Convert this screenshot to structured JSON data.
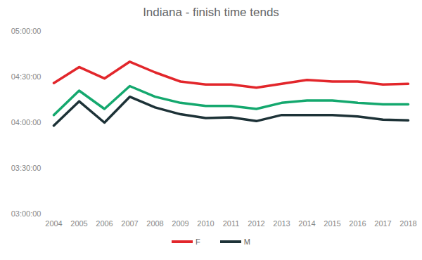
{
  "chart_data": {
    "type": "line",
    "title": "Indiana - finish time tends",
    "categories": [
      "2004",
      "2005",
      "2006",
      "2007",
      "2008",
      "2009",
      "2010",
      "2011",
      "2012",
      "2013",
      "2014",
      "2015",
      "2016",
      "2017",
      "2018"
    ],
    "series": [
      {
        "name": "F",
        "color": "#e2262b",
        "values": [
          266,
          276.5,
          269,
          280,
          273,
          267,
          265,
          265,
          263,
          265.5,
          268,
          267,
          267,
          265,
          265.5
        ]
      },
      {
        "name": null,
        "color": "#14a86e",
        "values": [
          245,
          261,
          249,
          264,
          257,
          253,
          251,
          251,
          249,
          253,
          254.5,
          254.5,
          253,
          252,
          252
        ]
      },
      {
        "name": "M",
        "color": "#1d3237",
        "values": [
          238,
          254,
          240,
          257,
          250,
          245.5,
          243,
          243.5,
          241,
          245,
          245,
          245,
          244,
          242,
          241.5
        ]
      }
    ],
    "ylim": [
      180,
      300
    ],
    "yticks": [
      {
        "value": 180,
        "label": "03:00:00"
      },
      {
        "value": 210,
        "label": "03:30:00"
      },
      {
        "value": 240,
        "label": "04:00:00"
      },
      {
        "value": 270,
        "label": "04:30:00"
      },
      {
        "value": 300,
        "label": "05:00:00"
      }
    ],
    "grid": false,
    "legend": "bottom"
  }
}
